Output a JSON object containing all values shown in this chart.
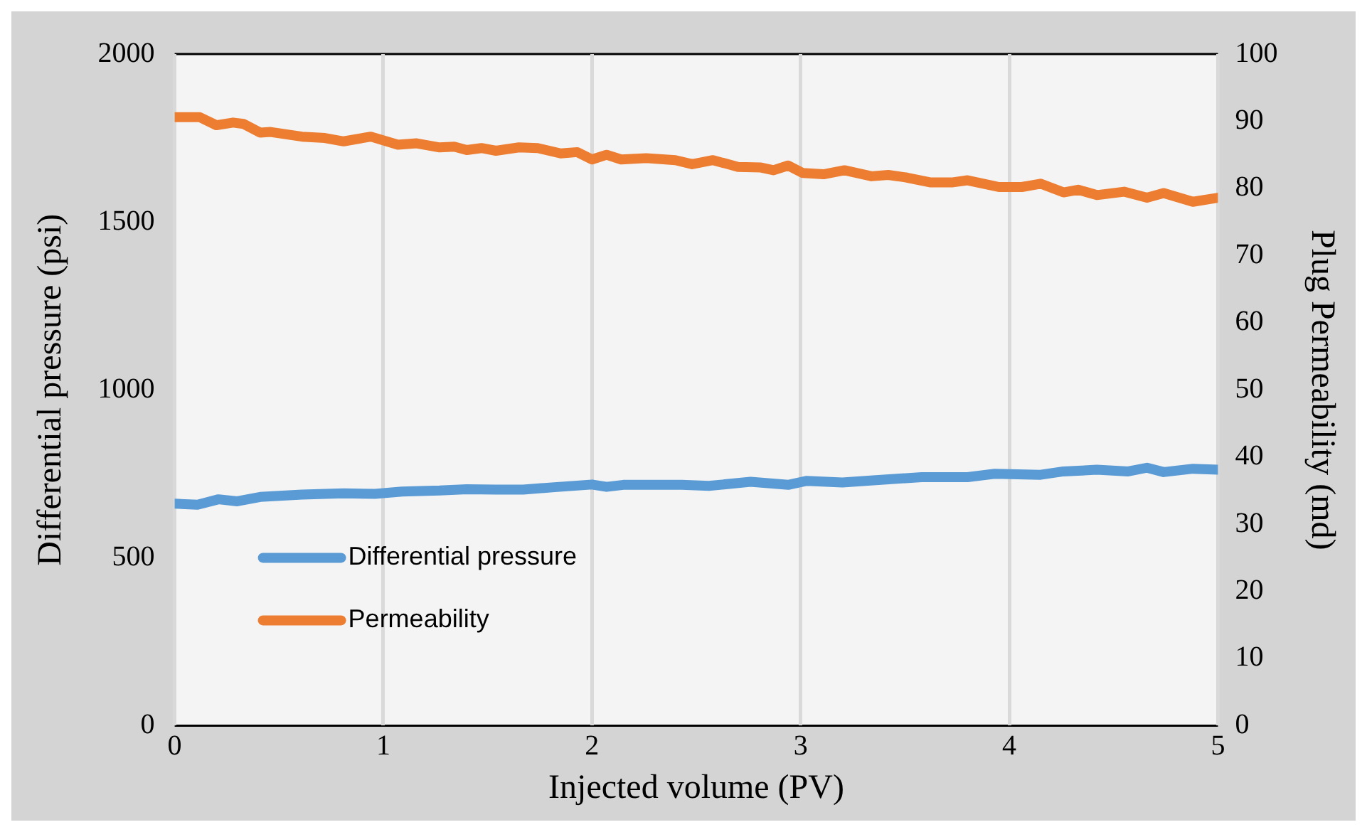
{
  "chart_data": {
    "type": "line",
    "xlabel": "Injected volume (PV)",
    "ylabel": "Differential pressure (psi)",
    "y2label": "Plug Permeability (md)",
    "xlim": [
      0,
      5
    ],
    "xticks": [
      0,
      1,
      2,
      3,
      4,
      5
    ],
    "ylim": [
      0,
      2000
    ],
    "yticks": [
      0,
      500,
      1000,
      1500,
      2000
    ],
    "y2lim": [
      0,
      100
    ],
    "y2ticks": [
      0,
      10,
      20,
      30,
      40,
      50,
      60,
      70,
      80,
      90,
      100
    ],
    "grid": "x",
    "legend": "bottom left",
    "marker": "none",
    "line_style": "solid",
    "series": [
      {
        "name": "Differential pressure",
        "color": "#5b9bd5",
        "x": [
          0,
          0.11,
          0.21,
          0.3,
          0.41,
          0.61,
          0.81,
          0.96,
          1.09,
          1.27,
          1.4,
          1.54,
          1.67,
          1.82,
          2,
          2.07,
          2.15,
          2.28,
          2.43,
          2.56,
          2.76,
          2.94,
          3.03,
          3.2,
          3.36,
          3.58,
          3.8,
          3.93,
          4.15,
          4.26,
          4.42,
          4.57,
          4.66,
          4.74,
          4.88,
          5
        ],
        "values": [
          661,
          658,
          674,
          668,
          681,
          688,
          692,
          690,
          697,
          700,
          704,
          703,
          703,
          710,
          718,
          711,
          717,
          717,
          717,
          714,
          726,
          717,
          729,
          724,
          731,
          740,
          740,
          750,
          747,
          757,
          762,
          757,
          768,
          755,
          765,
          762
        ]
      },
      {
        "name": "Permeability",
        "color": "#ed7d31",
        "axis": "y2",
        "x": [
          0,
          0.12,
          0.2,
          0.28,
          0.33,
          0.41,
          0.46,
          0.61,
          0.72,
          0.81,
          0.94,
          1.07,
          1.16,
          1.27,
          1.34,
          1.4,
          1.47,
          1.54,
          1.65,
          1.74,
          1.85,
          1.93,
          2,
          2.07,
          2.14,
          2.26,
          2.4,
          2.48,
          2.58,
          2.7,
          2.81,
          2.87,
          2.94,
          3.01,
          3.11,
          3.21,
          3.34,
          3.42,
          3.51,
          3.62,
          3.73,
          3.8,
          3.95,
          4.06,
          4.15,
          4.26,
          4.33,
          4.42,
          4.55,
          4.66,
          4.74,
          4.88,
          5
        ],
        "values": [
          90.6,
          90.6,
          89.4,
          89.8,
          89.6,
          88.3,
          88.4,
          87.7,
          87.5,
          87,
          87.7,
          86.5,
          86.7,
          86.1,
          86.2,
          85.7,
          86,
          85.6,
          86.1,
          86,
          85.2,
          85.4,
          84.3,
          85,
          84.3,
          84.5,
          84.2,
          83.6,
          84.2,
          83.2,
          83.1,
          82.7,
          83.4,
          82.3,
          82.1,
          82.7,
          81.8,
          82,
          81.6,
          80.9,
          80.9,
          81.2,
          80.2,
          80.2,
          80.7,
          79.4,
          79.8,
          79,
          79.5,
          78.6,
          79.3,
          78,
          78.6
        ]
      }
    ]
  }
}
